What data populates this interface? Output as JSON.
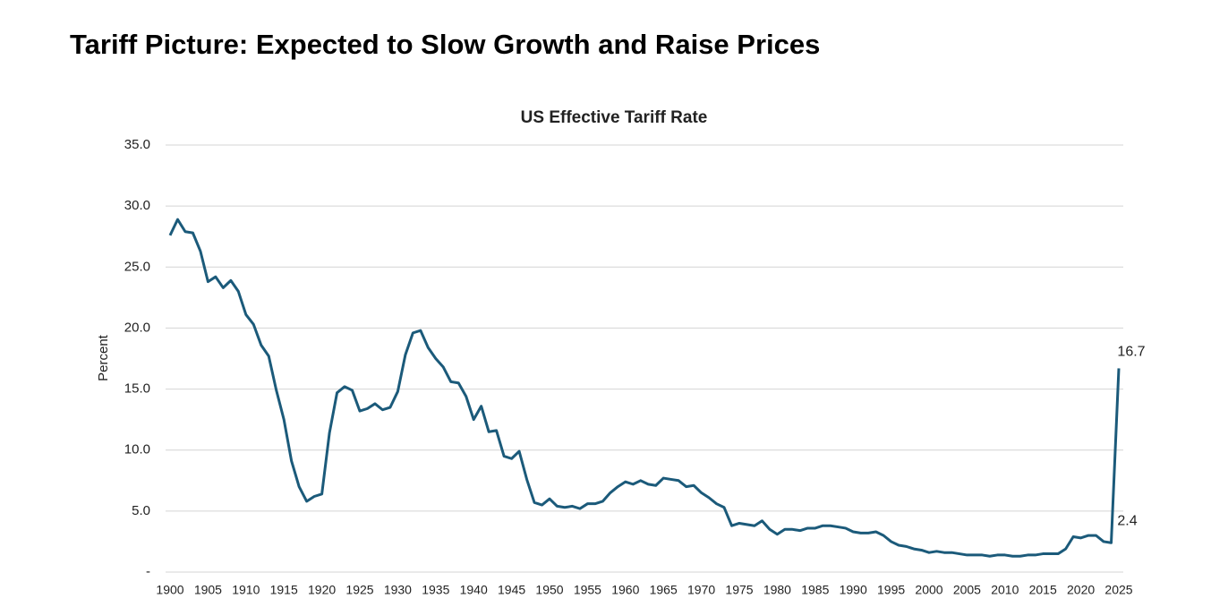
{
  "header": {
    "title": "Tariff Picture: Expected to Slow Growth and Raise Prices"
  },
  "chart_data": {
    "type": "line",
    "title": "US Effective Tariff Rate",
    "y_label": "Percent",
    "x": [
      1900,
      1901,
      1902,
      1903,
      1904,
      1905,
      1906,
      1907,
      1908,
      1909,
      1910,
      1911,
      1912,
      1913,
      1914,
      1915,
      1916,
      1917,
      1918,
      1919,
      1920,
      1921,
      1922,
      1923,
      1924,
      1925,
      1926,
      1927,
      1928,
      1929,
      1930,
      1931,
      1932,
      1933,
      1934,
      1935,
      1936,
      1937,
      1938,
      1939,
      1940,
      1941,
      1942,
      1943,
      1944,
      1945,
      1946,
      1947,
      1948,
      1949,
      1950,
      1951,
      1952,
      1953,
      1954,
      1955,
      1956,
      1957,
      1958,
      1959,
      1960,
      1961,
      1962,
      1963,
      1964,
      1965,
      1966,
      1967,
      1968,
      1969,
      1970,
      1971,
      1972,
      1973,
      1974,
      1975,
      1976,
      1977,
      1978,
      1979,
      1980,
      1981,
      1982,
      1983,
      1984,
      1985,
      1986,
      1987,
      1988,
      1989,
      1990,
      1991,
      1992,
      1993,
      1994,
      1995,
      1996,
      1997,
      1998,
      1999,
      2000,
      2001,
      2002,
      2003,
      2004,
      2005,
      2006,
      2007,
      2008,
      2009,
      2010,
      2011,
      2012,
      2013,
      2014,
      2015,
      2016,
      2017,
      2018,
      2019,
      2020,
      2021,
      2022,
      2023,
      2024,
      2025
    ],
    "series": [
      {
        "name": "US Effective Tariff Rate",
        "color": "#1b5a7a",
        "values": [
          27.6,
          28.9,
          27.9,
          27.8,
          26.3,
          23.8,
          24.2,
          23.3,
          23.9,
          23.0,
          21.1,
          20.3,
          18.6,
          17.7,
          14.9,
          12.5,
          9.1,
          7.0,
          5.8,
          6.2,
          6.4,
          11.4,
          14.7,
          15.2,
          14.9,
          13.2,
          13.4,
          13.8,
          13.3,
          13.5,
          14.8,
          17.8,
          19.6,
          19.8,
          18.4,
          17.5,
          16.8,
          15.6,
          15.5,
          14.4,
          12.5,
          13.6,
          11.5,
          11.6,
          9.5,
          9.3,
          9.9,
          7.6,
          5.7,
          5.5,
          6.0,
          5.4,
          5.3,
          5.4,
          5.2,
          5.6,
          5.6,
          5.8,
          6.5,
          7.0,
          7.4,
          7.2,
          7.5,
          7.2,
          7.1,
          7.7,
          7.6,
          7.5,
          7.0,
          7.1,
          6.5,
          6.1,
          5.6,
          5.3,
          3.8,
          4.0,
          3.9,
          3.8,
          4.2,
          3.5,
          3.1,
          3.5,
          3.5,
          3.4,
          3.6,
          3.6,
          3.8,
          3.8,
          3.7,
          3.6,
          3.3,
          3.2,
          3.2,
          3.3,
          3.0,
          2.5,
          2.2,
          2.1,
          1.9,
          1.8,
          1.6,
          1.7,
          1.6,
          1.6,
          1.5,
          1.4,
          1.4,
          1.4,
          1.3,
          1.4,
          1.4,
          1.3,
          1.3,
          1.4,
          1.4,
          1.5,
          1.5,
          1.5,
          1.9,
          2.9,
          2.8,
          3.0,
          3.0,
          2.5,
          2.4,
          16.7
        ]
      }
    ],
    "annotations": [
      {
        "x": 2025,
        "y": 16.7
      },
      {
        "x": 2024,
        "y": 2.4
      }
    ],
    "xlim": [
      1900,
      2025
    ],
    "xticks": [
      1900,
      1905,
      1910,
      1915,
      1920,
      1925,
      1930,
      1935,
      1940,
      1945,
      1950,
      1955,
      1960,
      1965,
      1970,
      1975,
      1980,
      1985,
      1990,
      1995,
      2000,
      2005,
      2010,
      2015,
      2020,
      2025
    ],
    "ylim": [
      0,
      35
    ],
    "yticks": [
      {
        "value": 0,
        "label": "-"
      },
      {
        "value": 5,
        "label": "5.0"
      },
      {
        "value": 10,
        "label": "10.0"
      },
      {
        "value": 15,
        "label": "15.0"
      },
      {
        "value": 20,
        "label": "20.0"
      },
      {
        "value": 25,
        "label": "25.0"
      },
      {
        "value": 30,
        "label": "30.0"
      },
      {
        "value": 35,
        "label": "35.0"
      }
    ],
    "grid": true
  }
}
